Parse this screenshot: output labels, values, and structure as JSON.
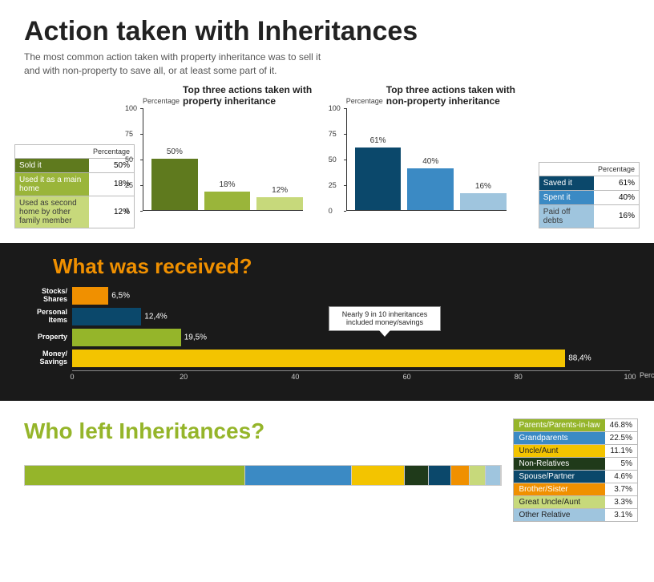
{
  "page": {
    "title": "Action taken with Inheritances",
    "subtitle1": "The most common action taken with property inheritance was to sell it",
    "subtitle2": "and with non-property to save all, or at least some part of it."
  },
  "chart1": {
    "title": "Top three actions taken with property inheritance",
    "ylabel": "Percentage",
    "ymax": 100,
    "yticks": [
      0,
      25,
      50,
      75,
      100
    ],
    "bars": [
      {
        "label": "Sold it",
        "value": 50,
        "pct_label": "50%",
        "color": "#5f7a1e"
      },
      {
        "label": "Used it as a main home",
        "value": 18,
        "pct_label": "18%",
        "color": "#9ab53a"
      },
      {
        "label": "Used as second home by other family member",
        "value": 12,
        "pct_label": "12%",
        "color": "#c7d97b"
      }
    ],
    "table_header": "Percentage"
  },
  "chart2": {
    "title": "Top three actions taken with non-property inheritance",
    "ylabel": "Percentage",
    "ymax": 100,
    "yticks": [
      0,
      25,
      50,
      75,
      100
    ],
    "bars": [
      {
        "label": "Saved it",
        "value": 61,
        "pct_label": "61%",
        "color": "#0b486b"
      },
      {
        "label": "Spent it",
        "value": 40,
        "pct_label": "40%",
        "color": "#3b8ac4"
      },
      {
        "label": "Paid off debts",
        "value": 16,
        "pct_label": "16%",
        "color": "#9fc5de"
      }
    ],
    "table_header": "Percentage"
  },
  "received": {
    "title": "What was received?",
    "xmax": 100,
    "xticks": [
      0,
      20,
      40,
      60,
      80,
      100
    ],
    "xlabel": "Percentage",
    "callout": "Nearly 9 in 10 inheritances included money/savings",
    "rows": [
      {
        "label": "Stocks/ Shares",
        "value": 6.5,
        "val_label": "6,5%",
        "color": "#f09000"
      },
      {
        "label": "Personal Items",
        "value": 12.4,
        "val_label": "12,4%",
        "color": "#0b486b"
      },
      {
        "label": "Property",
        "value": 19.5,
        "val_label": "19,5%",
        "color": "#95b52a"
      },
      {
        "label": "Money/ Savings",
        "value": 88.4,
        "val_label": "88,4%",
        "color": "#f3c400"
      }
    ]
  },
  "wholeft": {
    "title": "Who left Inheritances?",
    "rows": [
      {
        "label": "Parents/Parents-in-law",
        "value": 46.8,
        "val_label": "46.8%",
        "color": "#95b52a",
        "textdark": false
      },
      {
        "label": "Grandparents",
        "value": 22.5,
        "val_label": "22.5%",
        "color": "#3b8ac4",
        "textdark": false
      },
      {
        "label": "Uncle/Aunt",
        "value": 11.1,
        "val_label": "11.1%",
        "color": "#f3c400",
        "textdark": true
      },
      {
        "label": "Non-Relatives",
        "value": 5.0,
        "val_label": "5%",
        "color": "#1f3a1a",
        "textdark": false
      },
      {
        "label": "Spouse/Partner",
        "value": 4.6,
        "val_label": "4.6%",
        "color": "#0b486b",
        "textdark": false
      },
      {
        "label": "Brother/Sister",
        "value": 3.7,
        "val_label": "3.7%",
        "color": "#f09000",
        "textdark": false
      },
      {
        "label": "Great Uncle/Aunt",
        "value": 3.3,
        "val_label": "3.3%",
        "color": "#c7d97b",
        "textdark": true
      },
      {
        "label": "Other Relative",
        "value": 3.1,
        "val_label": "3.1%",
        "color": "#9fc5de",
        "textdark": true
      }
    ]
  }
}
